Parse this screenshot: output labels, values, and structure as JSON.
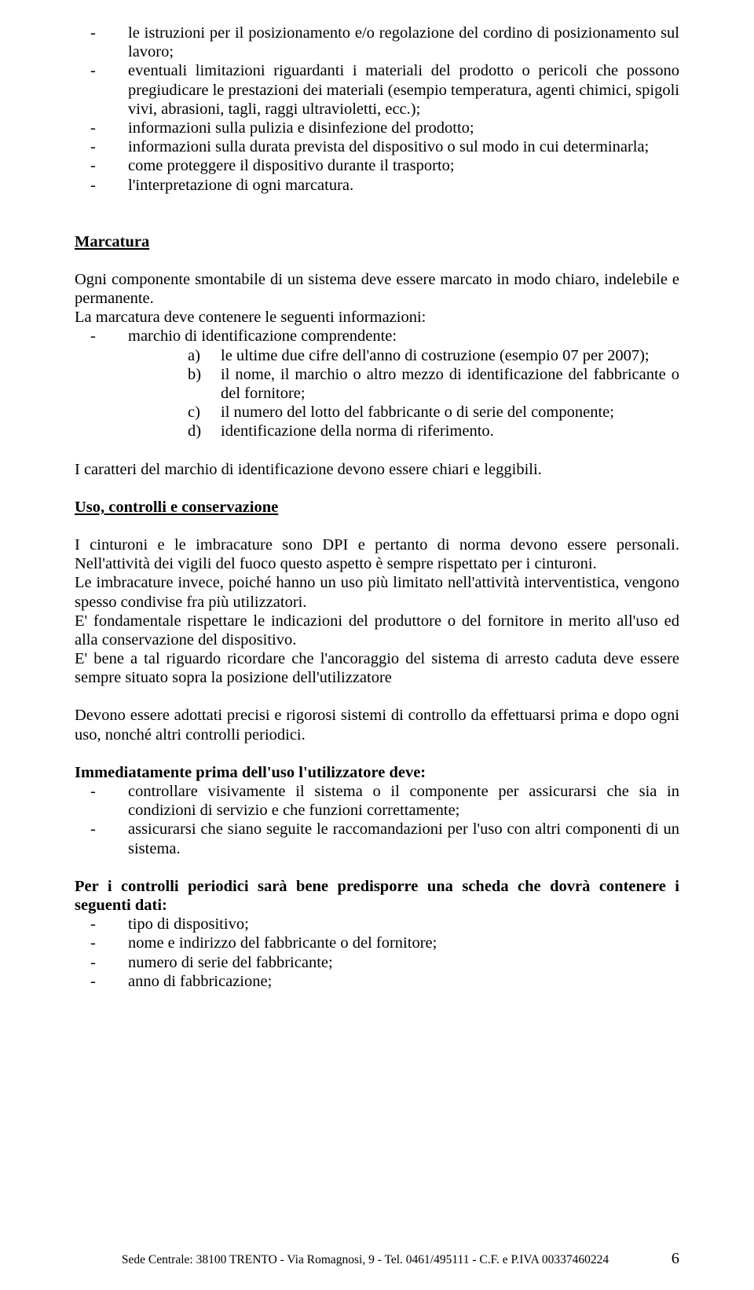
{
  "top_list": [
    "le istruzioni per il posizionamento e/o regolazione del cordino di posizionamento sul lavoro;",
    "eventuali limitazioni riguardanti i materiali del prodotto o pericoli che possono pregiudicare le prestazioni dei materiali (esempio temperatura, agenti chimici, spigoli vivi, abrasioni, tagli, raggi ultravioletti, ecc.);",
    "informazioni sulla pulizia e disinfezione del prodotto;",
    "informazioni sulla durata prevista del dispositivo o sul modo in cui determinarla;",
    "come proteggere il dispositivo durante il trasporto;",
    "l'interpretazione di ogni marcatura."
  ],
  "marcatura": {
    "title": "Marcatura",
    "p1": "Ogni componente smontabile di un sistema deve essere marcato in modo chiaro, indelebile e permanente.",
    "p2": "La marcatura deve contenere le seguenti informazioni:",
    "bullet1": "marchio di identificazione comprendente:",
    "alpha": [
      {
        "l": "a)",
        "t": "le ultime due cifre dell'anno di costruzione (esempio 07 per 2007);"
      },
      {
        "l": "b)",
        "t": "il nome, il marchio o altro mezzo di identificazione del fabbricante o del fornitore;"
      },
      {
        "l": "c)",
        "t": "il numero del lotto del fabbricante o di serie del componente;"
      },
      {
        "l": "d)",
        "t": "identificazione della norma di riferimento."
      }
    ],
    "p3": "I caratteri del marchio di identificazione devono essere chiari e leggibili."
  },
  "uso": {
    "title": "Uso, controlli e conservazione",
    "p1": "I cinturoni e le imbracature sono DPI e pertanto di norma devono essere personali. Nell'attività dei vigili del fuoco questo aspetto è sempre rispettato per i cinturoni.",
    "p2": "Le imbracature invece, poiché hanno un uso più limitato nell'attività interventistica, vengono spesso condivise fra più utilizzatori.",
    "p3": "E' fondamentale rispettare le indicazioni del produttore o del fornitore in merito all'uso ed alla conservazione del dispositivo.",
    "p4": "E' bene a tal riguardo ricordare che l'ancoraggio del sistema di arresto caduta deve essere sempre situato sopra la posizione dell'utilizzatore",
    "p5": "Devono essere adottati precisi e rigorosi sistemi di controllo da effettuarsi prima e dopo ogni uso, nonché altri controlli periodici.",
    "immediatamente_title": "Immediatamente prima dell'uso l'utilizzatore deve:",
    "immediatamente_list": [
      "controllare visivamente il sistema o il componente per assicurarsi che sia in condizioni di servizio e che funzioni correttamente;",
      "assicurarsi che siano seguite le raccomandazioni per l'uso con altri componenti di un sistema."
    ],
    "periodici_title": "Per i controlli periodici sarà bene predisporre una scheda che dovrà contenere i seguenti dati:",
    "periodici_list": [
      "tipo di dispositivo;",
      "nome e indirizzo del fabbricante o del fornitore;",
      "numero di serie del fabbricante;",
      "anno di fabbricazione;"
    ]
  },
  "footer": {
    "center": "Sede Centrale: 38100 TRENTO - Via Romagnosi, 9 - Tel. 0461/495111 - C.F. e P.IVA 00337460224",
    "page": "6"
  }
}
